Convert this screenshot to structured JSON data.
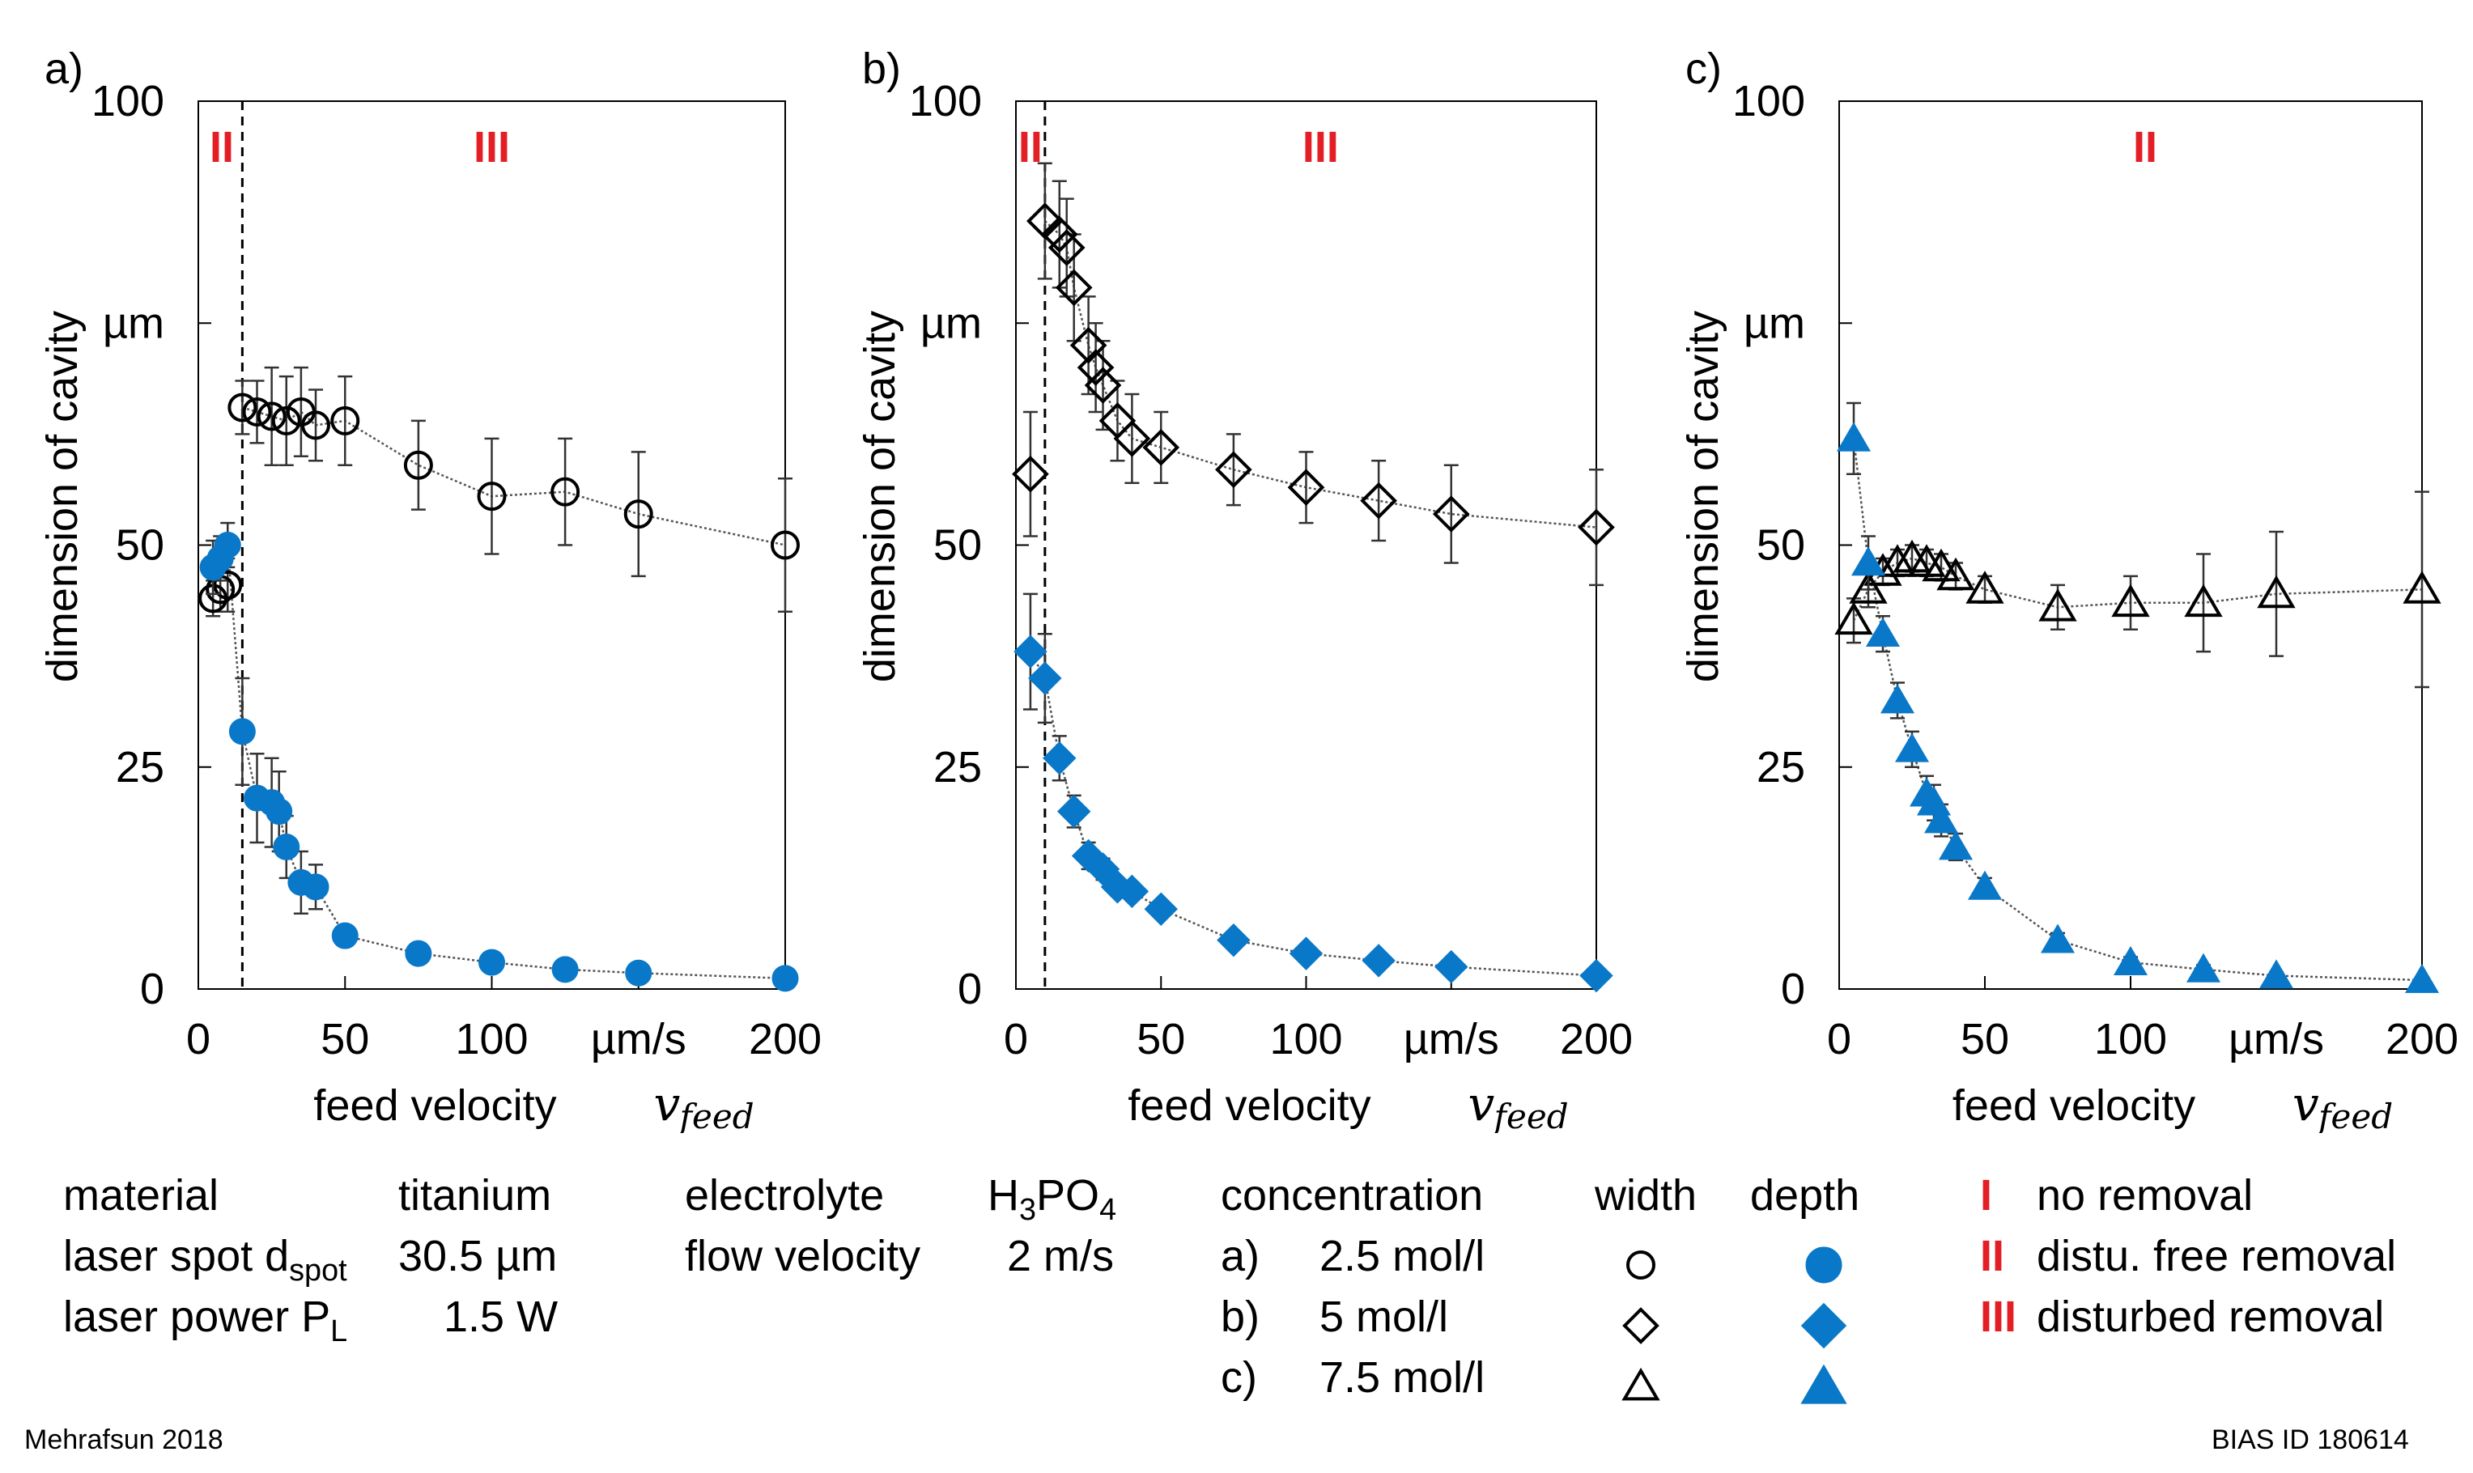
{
  "chart_data": [
    {
      "type": "scatter",
      "panel_label": "a)",
      "xlabel": "feed velocity",
      "xlabel_var": "v",
      "xlabel_sub": "feed",
      "ylabel": "dimension of cavity",
      "x_unit": "µm/s",
      "y_unit": "µm",
      "xlim": [
        0,
        200
      ],
      "ylim": [
        0,
        100
      ],
      "xticks": [
        "0",
        "50",
        "100",
        "200"
      ],
      "yticks": [
        "0",
        "25",
        "50",
        "100"
      ],
      "divider_x": 15,
      "regions": [
        {
          "label": "II",
          "x": 8
        },
        {
          "label": "III",
          "x": 100
        }
      ],
      "series": [
        {
          "name": "width",
          "marker": "circle",
          "filled": false,
          "color": "#000000",
          "x": [
            5,
            7.5,
            10,
            15,
            20,
            25,
            30,
            35,
            40,
            50,
            75,
            100,
            125,
            150,
            200
          ],
          "y": [
            44,
            45,
            45.5,
            65.5,
            65,
            64.5,
            64,
            65,
            63.5,
            64,
            59,
            55.5,
            56,
            53.5,
            50
          ],
          "err": [
            2,
            2.5,
            3,
            3,
            3.5,
            5.5,
            5,
            5,
            4,
            5,
            5,
            6.5,
            6,
            7,
            7.5
          ]
        },
        {
          "name": "depth",
          "marker": "circle",
          "filled": true,
          "color": "#0a78c8",
          "x": [
            5,
            7.5,
            10,
            15,
            20,
            25,
            27.5,
            30,
            35,
            40,
            50,
            75,
            100,
            125,
            150,
            200
          ],
          "y": [
            47.5,
            48.5,
            50,
            29,
            21.5,
            21,
            20,
            16,
            12,
            11.5,
            6,
            4,
            3,
            2.2,
            1.8,
            1.2
          ],
          "err": [
            3,
            2.5,
            2.5,
            6,
            5,
            5,
            4.5,
            3.5,
            3.5,
            2.5,
            1,
            0.8,
            0.6,
            0.5,
            0.4,
            0.3
          ]
        }
      ]
    },
    {
      "type": "scatter",
      "panel_label": "b)",
      "xlabel": "feed velocity",
      "xlabel_var": "v",
      "xlabel_sub": "feed",
      "ylabel": "dimension of cavity",
      "x_unit": "µm/s",
      "y_unit": "µm",
      "xlim": [
        0,
        200
      ],
      "ylim": [
        0,
        100
      ],
      "xticks": [
        "0",
        "50",
        "100",
        "200"
      ],
      "yticks": [
        "0",
        "25",
        "50",
        "100"
      ],
      "divider_x": 10,
      "regions": [
        {
          "label": "II",
          "x": 5
        },
        {
          "label": "III",
          "x": 105
        }
      ],
      "series": [
        {
          "name": "width",
          "marker": "diamond",
          "filled": false,
          "color": "#000000",
          "x": [
            5,
            10,
            15,
            17.5,
            20,
            25,
            27.5,
            30,
            35,
            40,
            50,
            75,
            100,
            125,
            150,
            200
          ],
          "y": [
            58,
            86.5,
            85,
            83.5,
            79,
            72.5,
            70,
            68,
            64,
            62,
            61,
            58.5,
            56.5,
            55,
            53.5,
            52
          ],
          "err": [
            7,
            6.5,
            6,
            5.5,
            6,
            5.5,
            5,
            5,
            4.5,
            5,
            4,
            4,
            4,
            4.5,
            5.5,
            6.5
          ]
        },
        {
          "name": "depth",
          "marker": "diamond",
          "filled": true,
          "color": "#0a78c8",
          "x": [
            5,
            10,
            15,
            20,
            25,
            30,
            35,
            40,
            50,
            75,
            100,
            125,
            150,
            200
          ],
          "y": [
            38,
            35,
            26,
            20,
            15,
            13.5,
            11.5,
            11,
            9,
            5.5,
            4,
            3.2,
            2.5,
            1.5
          ],
          "err": [
            6.5,
            5,
            2.5,
            1.8,
            1.5,
            1.2,
            1,
            1,
            0.8,
            0.6,
            0.5,
            0.5,
            0.4,
            0.3
          ]
        }
      ]
    },
    {
      "type": "scatter",
      "panel_label": "c)",
      "xlabel": "feed velocity",
      "xlabel_var": "v",
      "xlabel_sub": "feed",
      "ylabel": "dimension of cavity",
      "x_unit": "µm/s",
      "y_unit": "µm",
      "xlim": [
        0,
        200
      ],
      "ylim": [
        0,
        100
      ],
      "xticks": [
        "0",
        "50",
        "100",
        "200"
      ],
      "yticks": [
        "0",
        "25",
        "50",
        "100"
      ],
      "divider_x": null,
      "regions": [
        {
          "label": "II",
          "x": 105
        }
      ],
      "series": [
        {
          "name": "width",
          "marker": "triangle",
          "filled": false,
          "color": "#000000",
          "x": [
            5,
            10,
            15,
            20,
            25,
            30,
            35,
            40,
            50,
            75,
            100,
            125,
            150,
            200
          ],
          "y": [
            41.5,
            45,
            47,
            48,
            48.5,
            48,
            47.5,
            46.5,
            45,
            43,
            43.5,
            43.5,
            44.5,
            45
          ],
          "err": [
            2.5,
            2,
            1.5,
            1.5,
            1.5,
            1.5,
            1.5,
            1.5,
            1.5,
            2.5,
            3,
            5.5,
            7,
            11
          ]
        },
        {
          "name": "depth",
          "marker": "triangle",
          "filled": true,
          "color": "#0a78c8",
          "x": [
            5,
            10,
            15,
            20,
            25,
            30,
            32.5,
            35,
            40,
            50,
            75,
            100,
            125,
            150,
            200
          ],
          "y": [
            62,
            48,
            40,
            32.5,
            27,
            22,
            21,
            19,
            16,
            11.5,
            5.5,
            3,
            2.2,
            1.5,
            1
          ],
          "err": [
            4,
            3,
            2,
            2,
            2,
            2,
            2,
            1.8,
            1.5,
            1,
            0.8,
            0.6,
            0.5,
            0.4,
            0.3
          ]
        }
      ]
    }
  ],
  "legend": {
    "col1": [
      {
        "label": "material",
        "value": "titanium"
      },
      {
        "label": "laser spot d",
        "label_sub": "spot",
        "value": "30.5 µm"
      },
      {
        "label": "laser power P",
        "label_sub": "L",
        "value": "1.5 W"
      }
    ],
    "col2": [
      {
        "label": "electrolyte",
        "value_main": "H",
        "value_sub1": "3",
        "value_mid": "PO",
        "value_sub2": "4"
      },
      {
        "label": "flow velocity",
        "value": "2 m/s"
      }
    ],
    "concentration_header": "concentration",
    "concentrations": [
      {
        "key": "a)",
        "value": "2.5 mol/l"
      },
      {
        "key": "b)",
        "value": "5 mol/l"
      },
      {
        "key": "c)",
        "value": "7.5 mol/l"
      }
    ],
    "width_header": "width",
    "depth_header": "depth",
    "regions": [
      {
        "numeral": "I",
        "text": "no removal"
      },
      {
        "numeral": "II",
        "text": "distu. free removal"
      },
      {
        "numeral": "III",
        "text": "disturbed removal"
      }
    ]
  },
  "footer": {
    "left": "Mehrafsun 2018",
    "right": "BIAS ID 180614"
  },
  "colors": {
    "depth": "#0a78c8",
    "width": "#000000",
    "region": "#e31e24"
  }
}
